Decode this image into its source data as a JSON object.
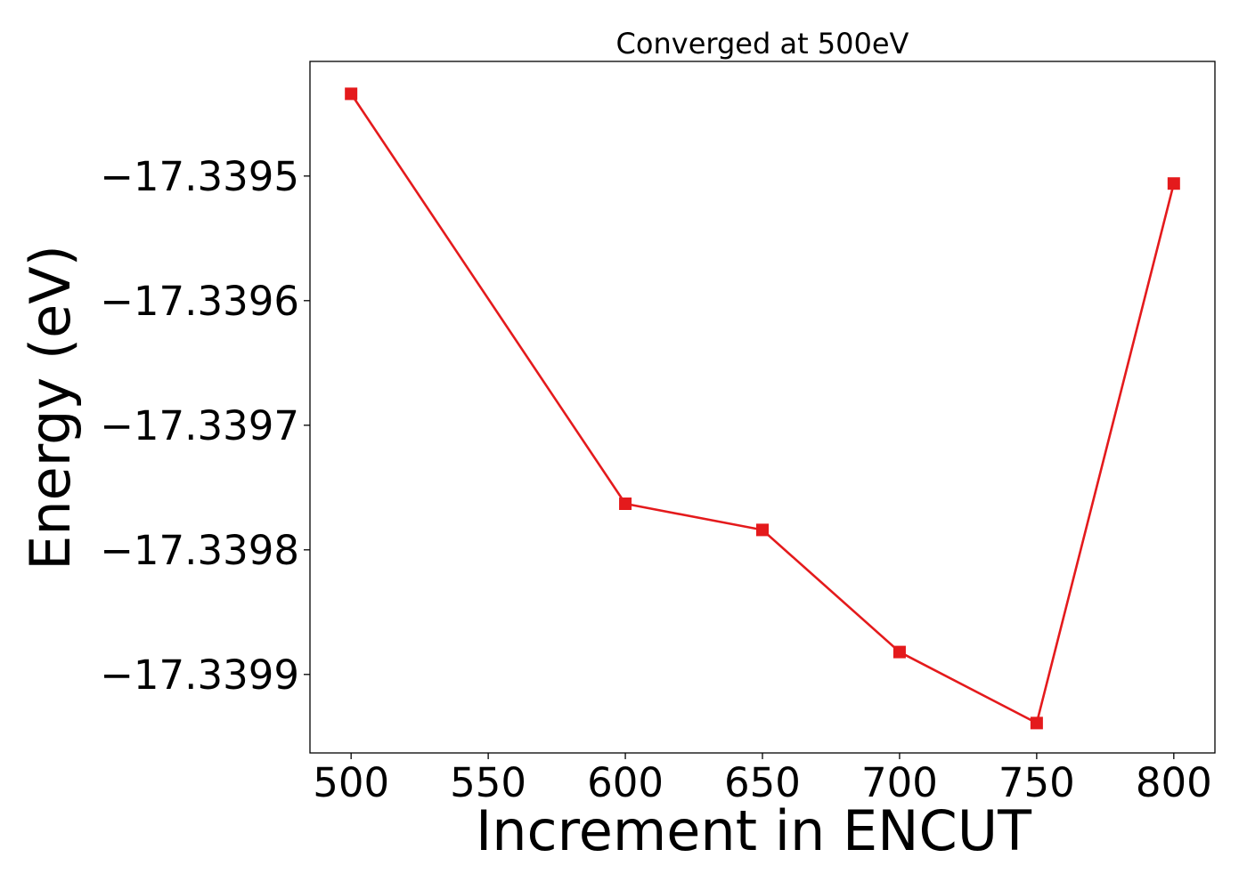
{
  "chart_data": {
    "type": "line",
    "title": "Converged at 500eV",
    "xlabel": "Increment in ENCUT",
    "ylabel": "Energy (eV)",
    "x": [
      500,
      600,
      650,
      700,
      750,
      800
    ],
    "series": [
      {
        "values": [
          -17.339434,
          -17.339763,
          -17.339784,
          -17.339882,
          -17.339939,
          -17.339506
        ],
        "color": "#e41a1c",
        "marker": "square"
      }
    ],
    "xlim": [
      485,
      815
    ],
    "ylim": [
      -17.339963,
      -17.339408
    ],
    "x_ticks": [
      500,
      550,
      600,
      650,
      700,
      750,
      800
    ],
    "x_tick_labels": [
      "500",
      "550",
      "600",
      "650",
      "700",
      "750",
      "800"
    ],
    "y_ticks": [
      -17.3395,
      -17.3396,
      -17.3397,
      -17.3398,
      -17.3399
    ],
    "y_tick_labels": [
      "−17.3395",
      "−17.3396",
      "−17.3397",
      "−17.3398",
      "−17.3399"
    ],
    "grid": false,
    "legend": "none"
  }
}
